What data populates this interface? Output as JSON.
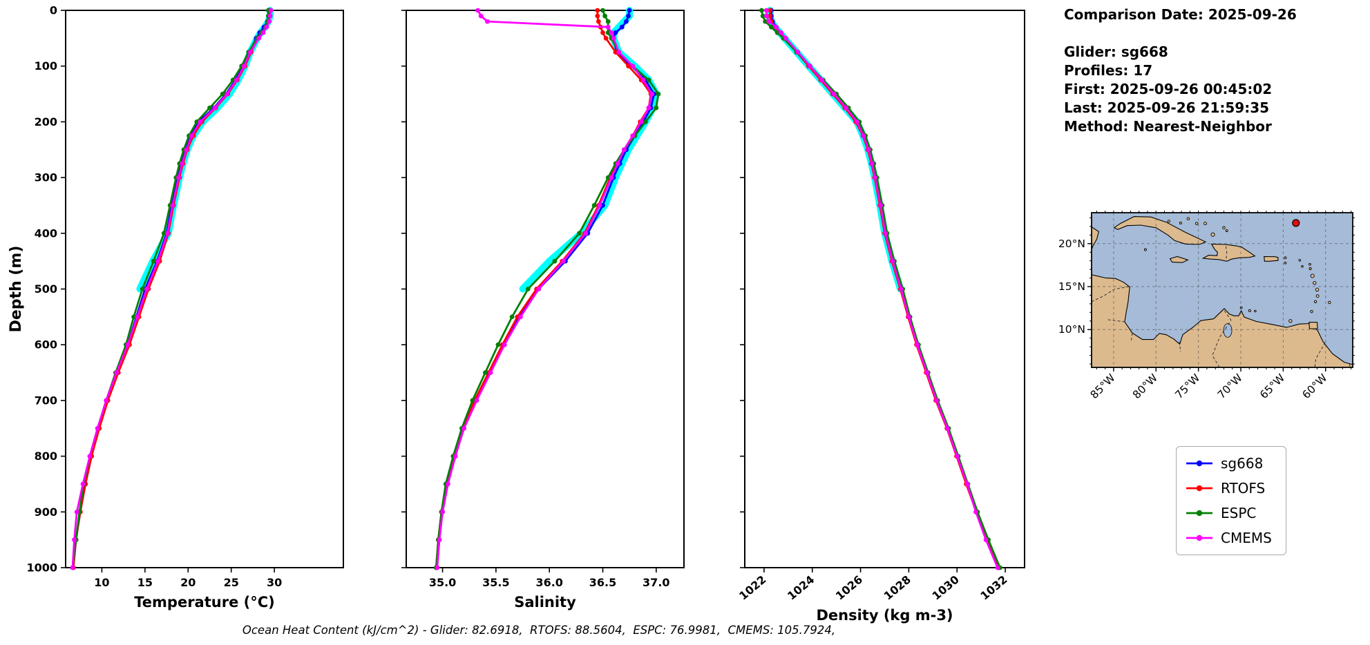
{
  "info": {
    "comparison_date": "Comparison Date: 2025-09-26",
    "glider": "Glider: sg668",
    "profiles": "Profiles: 17",
    "first": "First: 2025-09-26 00:45:02",
    "last": "Last: 2025-09-26 21:59:35",
    "method": "Method: Nearest-Neighbor"
  },
  "caption": "Ocean Heat Content (kJ/cm^2) - Glider: 82.6918,  RTOFS: 88.5604,  ESPC: 76.9981,  CMEMS: 105.7924,",
  "ylabel": "Depth (m)",
  "legend": {
    "entries": [
      {
        "label": "sg668",
        "color": "#0000ff"
      },
      {
        "label": "RTOFS",
        "color": "#ff0000"
      },
      {
        "label": "ESPC",
        "color": "#008000"
      },
      {
        "label": "CMEMS",
        "color": "#ff00ff"
      }
    ]
  },
  "chart_data": [
    {
      "type": "line",
      "name": "temperature-profile",
      "xlabel": "Temperature (°C)",
      "ylabel": "Depth (m)",
      "x_range": [
        5.8,
        38.0
      ],
      "x_ticks": [
        10,
        15,
        20,
        25,
        30
      ],
      "x_tick_labels": [
        "10",
        "15",
        "20",
        "25",
        "30"
      ],
      "rotate_x_tick_labels": false,
      "y_range": [
        0,
        1000
      ],
      "y_ticks": [
        0,
        100,
        200,
        300,
        400,
        500,
        600,
        700,
        800,
        900,
        1000
      ],
      "y_inverted": true,
      "depths": [
        0,
        10,
        20,
        30,
        40,
        50,
        75,
        100,
        125,
        150,
        175,
        200,
        225,
        250,
        275,
        300,
        350,
        400,
        450,
        500,
        550,
        600,
        650,
        700,
        750,
        800,
        850,
        900,
        950,
        1000
      ],
      "series": [
        {
          "name": "glider-raw",
          "color": "#00ffff",
          "halo": true,
          "values": [
            29.5,
            29.5,
            29.3,
            28.9,
            28.4,
            28.0,
            27.2,
            26.6,
            25.8,
            24.8,
            23.4,
            21.7,
            20.6,
            19.9,
            19.4,
            19.0,
            18.3,
            17.7,
            15.9,
            14.4
          ]
        },
        {
          "name": "sg668",
          "color": "#0000ff",
          "values": [
            29.4,
            29.4,
            29.2,
            28.8,
            28.3,
            27.9,
            27.1,
            26.4,
            25.5,
            24.4,
            23.0,
            21.2,
            20.3,
            19.7,
            19.2,
            18.8,
            18.1,
            17.5,
            16.4,
            15.0,
            14.0,
            13.0,
            11.8,
            10.6,
            9.6,
            8.8,
            8.1,
            7.5,
            7.0,
            6.7
          ]
        },
        {
          "name": "RTOFS",
          "color": "#ff0000",
          "values": [
            29.5,
            29.5,
            29.3,
            29.0,
            28.6,
            28.1,
            27.3,
            26.6,
            25.7,
            24.6,
            23.2,
            21.6,
            20.6,
            19.9,
            19.4,
            19.0,
            18.3,
            17.7,
            16.7,
            15.4,
            14.3,
            13.2,
            11.9,
            10.7,
            9.7,
            8.8,
            8.1,
            7.5,
            7.0,
            6.7
          ]
        },
        {
          "name": "ESPC",
          "color": "#008000",
          "values": [
            29.3,
            29.3,
            29.2,
            29.0,
            28.5,
            28.0,
            27.0,
            26.2,
            25.2,
            24.0,
            22.5,
            21.0,
            20.1,
            19.5,
            19.0,
            18.6,
            17.9,
            17.2,
            16.0,
            14.7,
            13.7,
            12.8,
            11.6,
            10.5,
            9.5,
            8.6,
            7.9,
            7.4,
            7.0,
            6.6
          ]
        },
        {
          "name": "CMEMS",
          "color": "#ff00ff",
          "values": [
            29.6,
            29.5,
            29.4,
            29.1,
            28.7,
            28.2,
            27.2,
            26.5,
            25.6,
            24.5,
            23.1,
            21.4,
            20.4,
            19.8,
            19.3,
            18.9,
            18.2,
            17.6,
            16.5,
            15.2,
            14.1,
            13.0,
            11.7,
            10.5,
            9.5,
            8.6,
            7.8,
            7.1,
            6.8,
            6.6
          ]
        }
      ]
    },
    {
      "type": "line",
      "name": "salinity-profile",
      "xlabel": "Salinity",
      "ylabel": "Depth (m)",
      "x_range": [
        34.66,
        37.26
      ],
      "x_ticks": [
        35.0,
        35.5,
        36.0,
        36.5,
        37.0
      ],
      "x_tick_labels": [
        "35.0",
        "35.5",
        "36.0",
        "36.5",
        "37.0"
      ],
      "rotate_x_tick_labels": false,
      "y_range": [
        0,
        1000
      ],
      "y_ticks": [
        0,
        100,
        200,
        300,
        400,
        500,
        600,
        700,
        800,
        900,
        1000
      ],
      "y_inverted": true,
      "depths": [
        0,
        10,
        20,
        30,
        40,
        50,
        75,
        100,
        125,
        150,
        175,
        200,
        225,
        250,
        275,
        300,
        350,
        400,
        450,
        500,
        550,
        600,
        650,
        700,
        750,
        800,
        850,
        900,
        950,
        1000
      ],
      "series": [
        {
          "name": "glider-raw",
          "color": "#00ffff",
          "halo": true,
          "values": [
            36.75,
            36.75,
            36.7,
            36.65,
            36.6,
            36.6,
            36.65,
            36.8,
            36.93,
            37.0,
            36.97,
            36.9,
            36.82,
            36.74,
            36.68,
            36.62,
            36.52,
            36.3,
            36.0,
            35.75
          ]
        },
        {
          "name": "sg668",
          "color": "#0000ff",
          "values": [
            36.75,
            36.74,
            36.72,
            36.68,
            36.62,
            36.6,
            36.63,
            36.77,
            36.9,
            36.98,
            36.95,
            36.88,
            36.8,
            36.72,
            36.66,
            36.6,
            36.5,
            36.36,
            36.15,
            35.9,
            35.72,
            35.58,
            35.44,
            35.32,
            35.2,
            35.12,
            35.05,
            35.0,
            34.97,
            34.95
          ]
        },
        {
          "name": "RTOFS",
          "color": "#ff0000",
          "values": [
            36.45,
            36.45,
            36.46,
            36.48,
            36.5,
            36.53,
            36.62,
            36.74,
            36.86,
            36.95,
            36.93,
            36.85,
            36.78,
            36.7,
            36.63,
            36.57,
            36.46,
            36.33,
            36.12,
            35.88,
            35.7,
            35.56,
            35.43,
            35.3,
            35.19,
            35.1,
            35.04,
            34.99,
            34.96,
            34.94
          ]
        },
        {
          "name": "ESPC",
          "color": "#008000",
          "values": [
            36.5,
            36.52,
            36.55,
            36.55,
            36.55,
            36.58,
            36.65,
            36.78,
            36.93,
            37.02,
            37.0,
            36.9,
            36.8,
            36.7,
            36.62,
            36.55,
            36.42,
            36.28,
            36.05,
            35.8,
            35.65,
            35.52,
            35.4,
            35.28,
            35.18,
            35.1,
            35.03,
            34.99,
            34.96,
            34.94
          ]
        },
        {
          "name": "CMEMS",
          "color": "#ff00ff",
          "values": [
            35.33,
            35.36,
            35.42,
            36.55,
            36.58,
            36.6,
            36.65,
            36.78,
            36.88,
            36.96,
            36.93,
            36.86,
            36.78,
            36.7,
            36.64,
            36.58,
            36.47,
            36.34,
            36.13,
            35.9,
            35.73,
            35.58,
            35.45,
            35.32,
            35.2,
            35.12,
            35.05,
            35.0,
            34.97,
            34.95
          ]
        }
      ]
    },
    {
      "type": "line",
      "name": "density-profile",
      "xlabel": "Density (kg m-3)",
      "ylabel": "Depth (m)",
      "x_range": [
        1021.2,
        1032.8
      ],
      "x_ticks": [
        1022,
        1024,
        1026,
        1028,
        1030,
        1032
      ],
      "x_tick_labels": [
        "1022",
        "1024",
        "1026",
        "1028",
        "1030",
        "1032"
      ],
      "rotate_x_tick_labels": true,
      "y_range": [
        0,
        1000
      ],
      "y_ticks": [
        0,
        100,
        200,
        300,
        400,
        500,
        600,
        700,
        800,
        900,
        1000
      ],
      "y_inverted": true,
      "depths": [
        0,
        10,
        20,
        30,
        40,
        50,
        75,
        100,
        125,
        150,
        175,
        200,
        225,
        250,
        275,
        300,
        350,
        400,
        450,
        500,
        550,
        600,
        650,
        700,
        750,
        800,
        850,
        900,
        950,
        1000
      ],
      "series": [
        {
          "name": "glider-raw",
          "color": "#00ffff",
          "halo": true,
          "values": [
            1022.25,
            1022.25,
            1022.3,
            1022.45,
            1022.65,
            1022.85,
            1023.35,
            1023.85,
            1024.35,
            1024.85,
            1025.35,
            1025.85,
            1026.1,
            1026.3,
            1026.45,
            1026.58,
            1026.8,
            1027.0,
            1027.3,
            1027.65
          ]
        },
        {
          "name": "sg668",
          "color": "#0000ff",
          "values": [
            1022.3,
            1022.3,
            1022.35,
            1022.5,
            1022.7,
            1022.9,
            1023.4,
            1023.9,
            1024.4,
            1024.9,
            1025.4,
            1025.9,
            1026.15,
            1026.35,
            1026.5,
            1026.62,
            1026.85,
            1027.05,
            1027.35,
            1027.7,
            1028.0,
            1028.35,
            1028.75,
            1029.15,
            1029.6,
            1030.0,
            1030.4,
            1030.82,
            1031.25,
            1031.72
          ]
        },
        {
          "name": "RTOFS",
          "color": "#ff0000",
          "values": [
            1022.25,
            1022.25,
            1022.3,
            1022.45,
            1022.65,
            1022.85,
            1023.35,
            1023.85,
            1024.35,
            1024.85,
            1025.35,
            1025.8,
            1026.1,
            1026.3,
            1026.45,
            1026.58,
            1026.8,
            1027.0,
            1027.3,
            1027.65,
            1027.97,
            1028.32,
            1028.72,
            1029.12,
            1029.58,
            1029.98,
            1030.38,
            1030.8,
            1031.22,
            1031.7
          ]
        },
        {
          "name": "ESPC",
          "color": "#008000",
          "values": [
            1021.9,
            1021.95,
            1022.05,
            1022.3,
            1022.55,
            1022.8,
            1023.35,
            1023.9,
            1024.45,
            1025.0,
            1025.5,
            1025.95,
            1026.2,
            1026.4,
            1026.55,
            1026.68,
            1026.9,
            1027.1,
            1027.4,
            1027.75,
            1028.05,
            1028.4,
            1028.8,
            1029.2,
            1029.65,
            1030.05,
            1030.45,
            1030.85,
            1031.3,
            1031.78
          ]
        },
        {
          "name": "CMEMS",
          "color": "#ff00ff",
          "values": [
            1022.1,
            1022.1,
            1022.2,
            1022.5,
            1022.7,
            1022.9,
            1023.4,
            1023.9,
            1024.4,
            1024.9,
            1025.4,
            1025.85,
            1026.12,
            1026.33,
            1026.48,
            1026.6,
            1026.83,
            1027.03,
            1027.33,
            1027.68,
            1028.0,
            1028.35,
            1028.75,
            1029.15,
            1029.6,
            1030.0,
            1030.42,
            1030.78,
            1031.2,
            1031.68
          ]
        }
      ]
    }
  ],
  "map": {
    "ocean_color": "#a5bbd8",
    "land_color": "#dcba8e",
    "coast_color": "#000000",
    "grid_lons": [
      -85,
      -80,
      -75,
      -70,
      -65,
      -60
    ],
    "grid_lats": [
      10,
      15,
      20
    ],
    "lon_labels": [
      "85°W",
      "80°W",
      "75°W",
      "70°W",
      "65°W",
      "60°W"
    ],
    "lat_labels": [
      "10°N",
      "15°N",
      "20°N"
    ],
    "marker": {
      "lon": -63.5,
      "lat": 22.4,
      "color": "#e01010"
    }
  }
}
